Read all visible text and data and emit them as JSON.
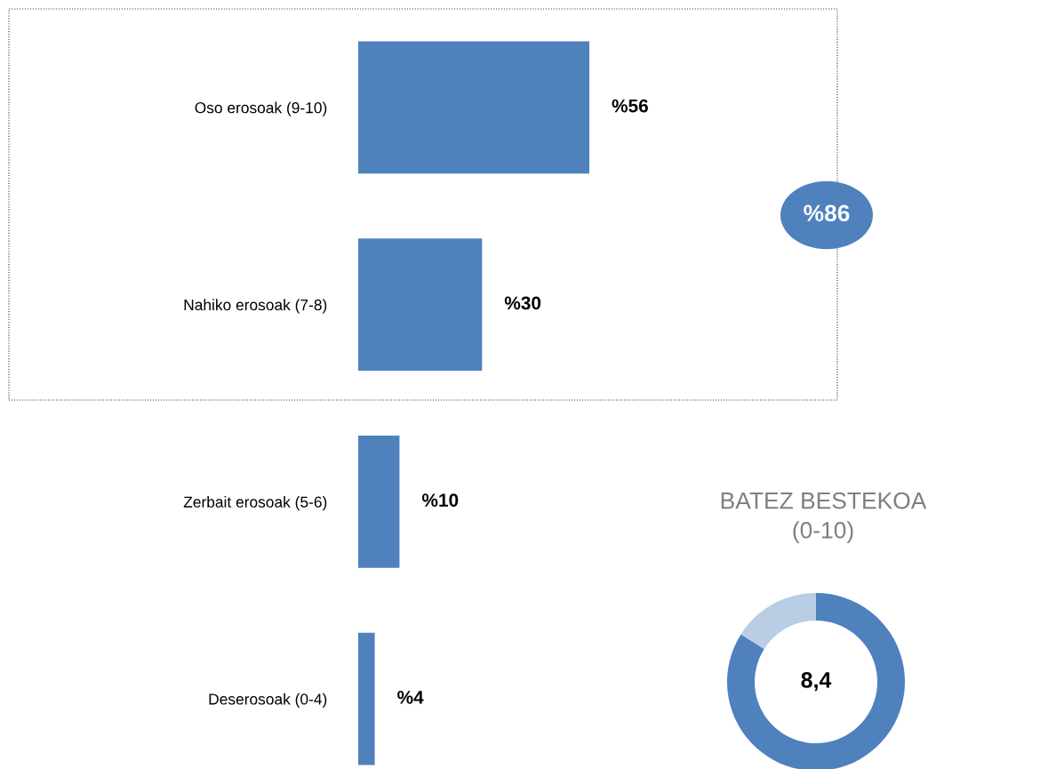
{
  "chart_data": [
    {
      "type": "bar",
      "orientation": "horizontal",
      "categories": [
        "Oso erosoak (9-10)",
        "Nahiko erosoak (7-8)",
        "Zerbait erosoak (5-6)",
        "Deserosoak (0-4)"
      ],
      "values": [
        56,
        30,
        10,
        4
      ],
      "value_labels": [
        "%56",
        "%30",
        "%10",
        "%4"
      ],
      "color": "#4f81bd",
      "tick_labels": "y",
      "annotations": [
        "%86"
      ]
    },
    {
      "type": "donut",
      "title": "BATEZ BESTEKOA\n(0-10)",
      "categories": [
        null,
        null
      ],
      "values": [
        84,
        16
      ],
      "colors": [
        "#4f81bd",
        "#b9cde5"
      ],
      "annotations": [
        "8,4"
      ]
    }
  ]
}
